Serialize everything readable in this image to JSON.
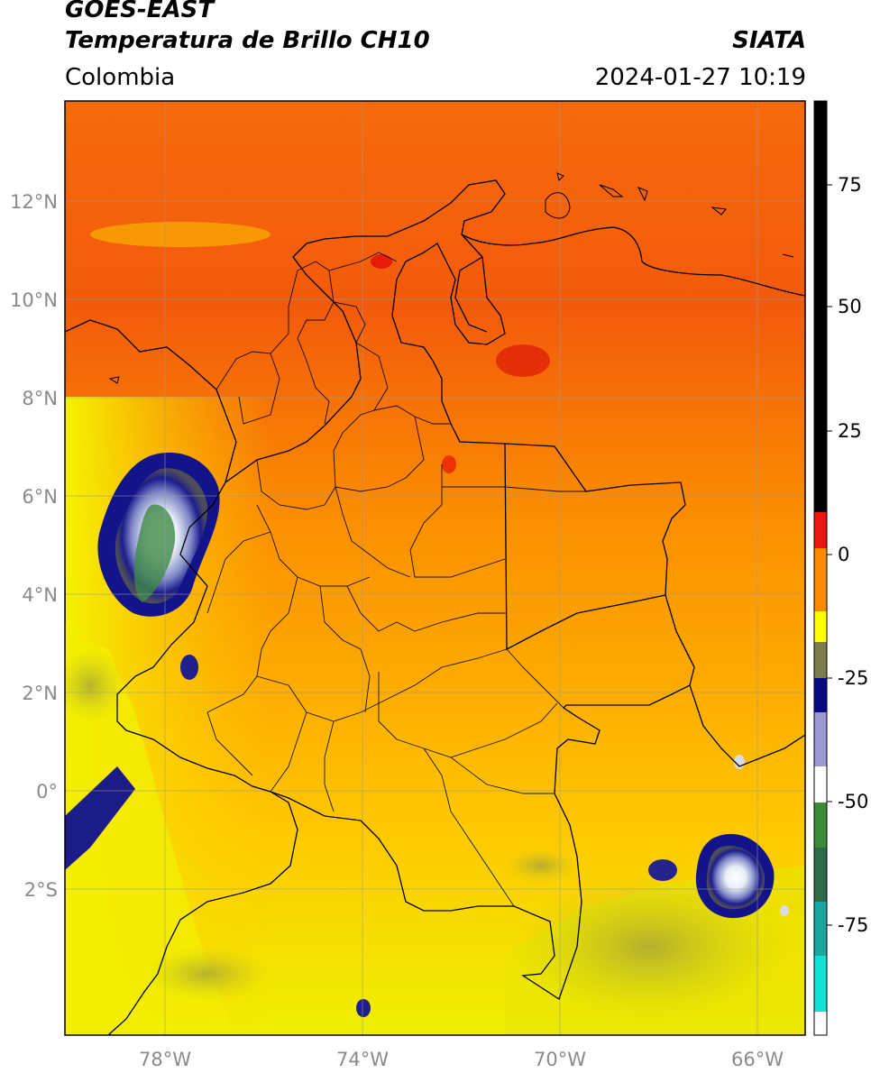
{
  "header": {
    "satellite": "GOES-EAST",
    "product": "Temperatura de Brillo CH10",
    "organization": "SIATA",
    "region": "Colombia",
    "datetime": "2024-01-27 10:19"
  },
  "map": {
    "lat_labels": [
      "12°N",
      "10°N",
      "8°N",
      "6°N",
      "4°N",
      "2°N",
      "0°",
      "2°S"
    ],
    "lon_labels": [
      "78°W",
      "74°W",
      "70°W",
      "66°W"
    ],
    "lat_range": [
      -5,
      14
    ],
    "lon_range": [
      -80,
      -65
    ]
  },
  "colorbar": {
    "range": [
      -95,
      90
    ],
    "tick_labels": [
      "75",
      "50",
      "25",
      "0",
      "-25",
      "-50",
      "-75"
    ],
    "tick_values": [
      75,
      50,
      25,
      0,
      -25,
      -50,
      -75
    ],
    "colors": {
      "black": "#000000",
      "red": "#e8170d",
      "orange": "#fb8a00",
      "yellow": "#ffff00",
      "olive": "#7c7c4c",
      "navy": "#0a0a80",
      "white": "#ffffff",
      "green": "#3a8a3a",
      "cyan": "#14e0d6"
    }
  }
}
